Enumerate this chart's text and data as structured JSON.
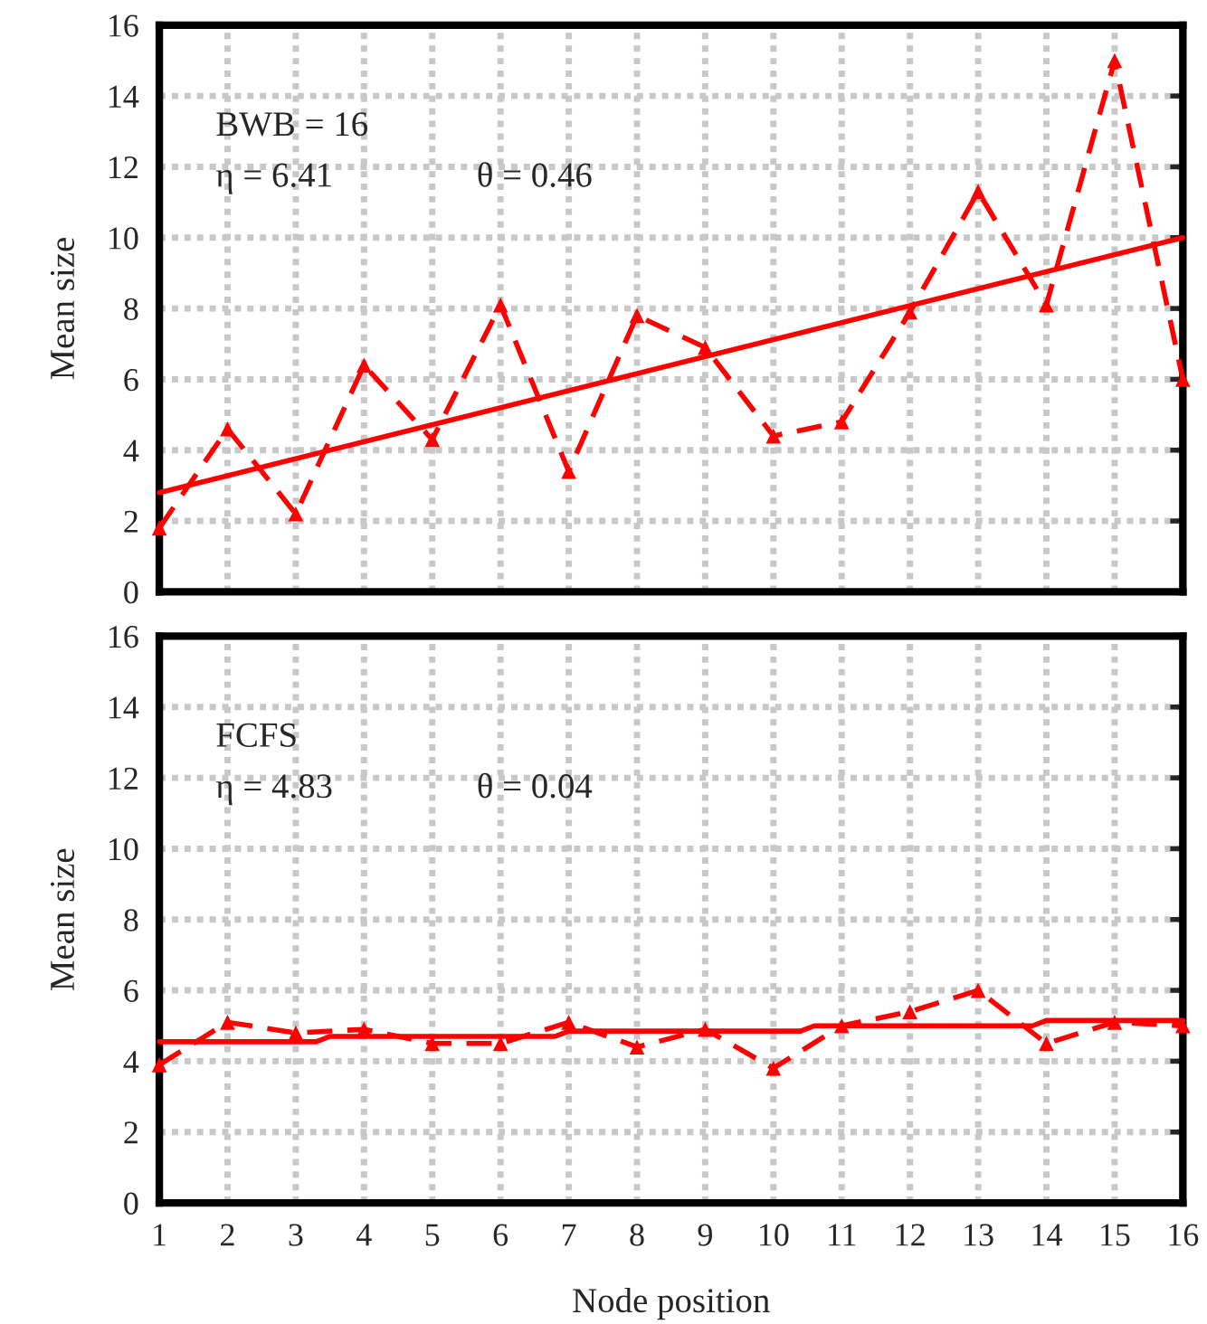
{
  "chart_data": [
    {
      "type": "line",
      "ylabel": "Mean size",
      "annotations": [
        "BWB = 16",
        "η = 6.41",
        "θ = 0.46"
      ],
      "xlim": [
        1,
        16
      ],
      "xticks": [
        1,
        2,
        3,
        4,
        5,
        6,
        7,
        8,
        9,
        10,
        11,
        12,
        13,
        14,
        15,
        16
      ],
      "ylim": [
        0,
        16
      ],
      "yticks": [
        0,
        2,
        4,
        6,
        8,
        10,
        12,
        14,
        16
      ],
      "grid": true,
      "legend": false,
      "tick_labels": "y",
      "series": [
        {
          "color": "#ff0000",
          "marker": "triangle",
          "line_style": "dashed",
          "x": [
            1,
            2,
            3,
            4,
            5,
            6,
            7,
            8,
            9,
            10,
            11,
            12,
            13,
            14,
            15,
            16
          ],
          "values": [
            1.8,
            4.6,
            2.2,
            6.4,
            4.3,
            8.1,
            3.4,
            7.8,
            6.9,
            4.4,
            4.8,
            7.9,
            11.3,
            8.1,
            15.0,
            6.0
          ]
        },
        {
          "color": "#ff0000",
          "line_style": "solid",
          "x": [
            1,
            16
          ],
          "values": [
            2.8,
            10.0
          ]
        }
      ]
    },
    {
      "type": "line",
      "ylabel": "Mean size",
      "xlabel": "Node position",
      "annotations": [
        "FCFS",
        "η = 4.83",
        "θ = 0.04"
      ],
      "xlim": [
        1,
        16
      ],
      "xticks": [
        1,
        2,
        3,
        4,
        5,
        6,
        7,
        8,
        9,
        10,
        11,
        12,
        13,
        14,
        15,
        16
      ],
      "ylim": [
        0,
        16
      ],
      "yticks": [
        0,
        2,
        4,
        6,
        8,
        10,
        12,
        14,
        16
      ],
      "grid": true,
      "legend": false,
      "series": [
        {
          "color": "#ff0000",
          "marker": "triangle",
          "line_style": "dashed",
          "x": [
            1,
            2,
            3,
            4,
            5,
            6,
            7,
            8,
            9,
            10,
            11,
            12,
            13,
            14,
            15,
            16
          ],
          "values": [
            3.9,
            5.1,
            4.8,
            4.9,
            4.5,
            4.5,
            5.1,
            4.4,
            4.9,
            3.8,
            5.0,
            5.4,
            6.0,
            4.5,
            5.1,
            5.0
          ]
        },
        {
          "color": "#ff0000",
          "line_style": "solid",
          "x": [
            1,
            3.3,
            3.5,
            6.8,
            7.0,
            10.4,
            10.6,
            13.8,
            14.0,
            16
          ],
          "values": [
            4.55,
            4.55,
            4.7,
            4.7,
            4.85,
            4.85,
            5.0,
            5.0,
            5.15,
            5.15
          ]
        }
      ]
    }
  ]
}
